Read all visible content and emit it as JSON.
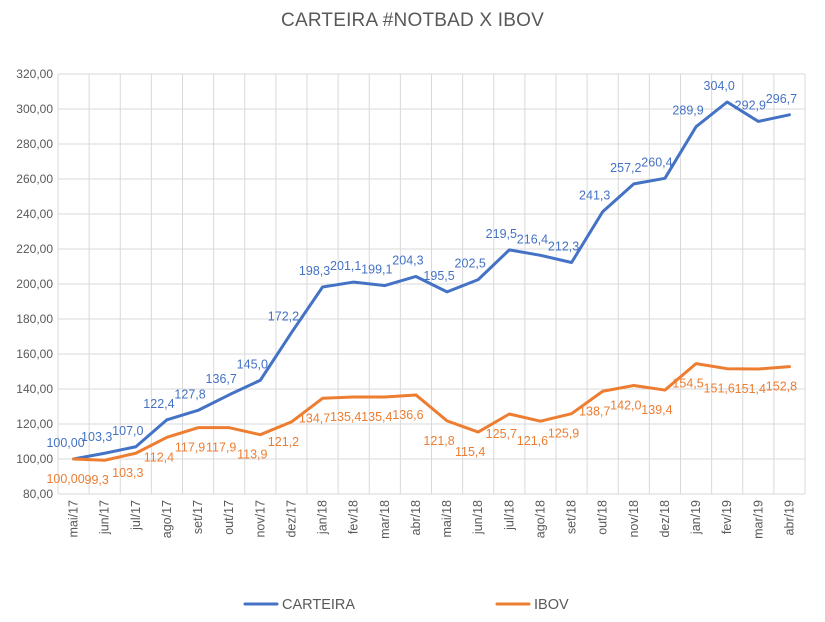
{
  "chart_data": {
    "type": "line",
    "title": "CARTEIRA #NOTBAD X IBOV",
    "categories": [
      "mai/17",
      "jun/17",
      "jul/17",
      "ago/17",
      "set/17",
      "out/17",
      "nov/17",
      "dez/17",
      "jan/18",
      "fev/18",
      "mar/18",
      "abr/18",
      "mai/18",
      "jun/18",
      "jul/18",
      "ago/18",
      "set/18",
      "out/18",
      "nov/18",
      "dez/18",
      "jan/19",
      "fev/19",
      "mar/19",
      "abr/19"
    ],
    "ylim": [
      80,
      320
    ],
    "yticks": [
      "80,00",
      "100,00",
      "120,00",
      "140,00",
      "160,00",
      "180,00",
      "200,00",
      "220,00",
      "240,00",
      "260,00",
      "280,00",
      "300,00",
      "320,00"
    ],
    "grid": true,
    "legend_position": "bottom",
    "series": [
      {
        "name": "CARTEIRA",
        "color": "#4472C4",
        "values": [
          100.0,
          103.3,
          107.0,
          122.4,
          127.8,
          136.7,
          145.0,
          172.2,
          198.3,
          201.1,
          199.1,
          204.3,
          195.5,
          202.5,
          219.5,
          216.4,
          212.3,
          241.3,
          257.2,
          260.4,
          289.9,
          304.0,
          292.9,
          296.7
        ],
        "labels": [
          "100,00",
          "103,3",
          "107,0",
          "122,4",
          "127,8",
          "136,7",
          "145,0",
          "172,2",
          "198,3",
          "201,1",
          "199,1",
          "204,3",
          "195,5",
          "202,5",
          "219,5",
          "216,4",
          "212,3",
          "241,3",
          "257,2",
          "260,4",
          "289,9",
          "304,0",
          "292,9",
          "296,7"
        ]
      },
      {
        "name": "IBOV",
        "color": "#ED7D31",
        "values": [
          100.0,
          99.3,
          103.3,
          112.4,
          117.9,
          117.9,
          113.9,
          121.2,
          134.7,
          135.4,
          135.4,
          136.6,
          121.8,
          115.4,
          125.7,
          121.6,
          125.9,
          138.7,
          142.0,
          139.4,
          154.5,
          151.6,
          151.4,
          152.8
        ],
        "labels": [
          "100,00",
          "99,3",
          "103,3",
          "112,4",
          "117,9",
          "117,9",
          "113,9",
          "121,2",
          "134,7",
          "135,4",
          "135,4",
          "136,6",
          "121,8",
          "115,4",
          "125,7",
          "121,6",
          "125,9",
          "138,7",
          "142,0",
          "139,4",
          "154,5",
          "151,6",
          "151,4",
          "152,8"
        ]
      }
    ]
  }
}
